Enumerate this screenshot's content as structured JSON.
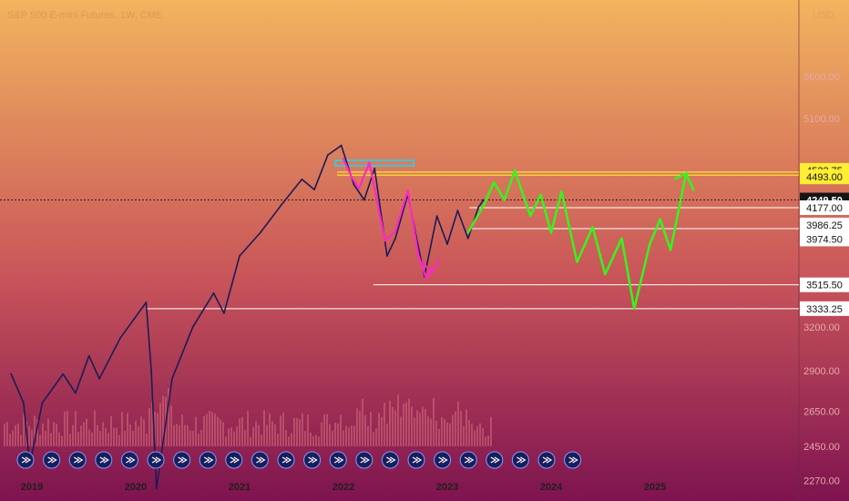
{
  "header": {
    "title": "S&P 500 E-mini Futures, 1W, CME"
  },
  "colors": {
    "bg_top": "#f2b45e",
    "bg_mid": "#c9555a",
    "bg_bottom": "#7e1350",
    "price_line": "#1d1b55",
    "projection": "#3cf01e",
    "pink_path": "#ff28c8",
    "resistance": "#ffee32",
    "level_line": "#ffffff",
    "current_price_line": "#222222",
    "blue_box": "#47c1d8",
    "volume": "#d56b7a",
    "event_icon": "#1a1d5c"
  },
  "chart_data": {
    "type": "line",
    "x_labels": [
      "2019",
      "2020",
      "2021",
      "2022",
      "2023",
      "2024",
      "2025"
    ],
    "y_ticks": [
      "5600.00",
      "5100.00",
      "3200.00",
      "2900.00",
      "2650.00",
      "2450.00",
      "2270.00"
    ],
    "y_scale": "log",
    "ylim": [
      2150,
      6300
    ],
    "series": [
      {
        "values": [
          {
            "x": 2018.8,
            "y": 2880
          },
          {
            "x": 2018.92,
            "y": 2700
          },
          {
            "x": 2018.98,
            "y": 2350
          },
          {
            "x": 2019.1,
            "y": 2700
          },
          {
            "x": 2019.3,
            "y": 2880
          },
          {
            "x": 2019.42,
            "y": 2760
          },
          {
            "x": 2019.55,
            "y": 3000
          },
          {
            "x": 2019.65,
            "y": 2850
          },
          {
            "x": 2019.85,
            "y": 3120
          },
          {
            "x": 2020.1,
            "y": 3380
          },
          {
            "x": 2020.15,
            "y": 2900
          },
          {
            "x": 2020.2,
            "y": 2230
          },
          {
            "x": 2020.35,
            "y": 2850
          },
          {
            "x": 2020.55,
            "y": 3200
          },
          {
            "x": 2020.75,
            "y": 3450
          },
          {
            "x": 2020.85,
            "y": 3300
          },
          {
            "x": 2021.0,
            "y": 3750
          },
          {
            "x": 2021.2,
            "y": 3950
          },
          {
            "x": 2021.4,
            "y": 4200
          },
          {
            "x": 2021.6,
            "y": 4450
          },
          {
            "x": 2021.72,
            "y": 4350
          },
          {
            "x": 2021.85,
            "y": 4700
          },
          {
            "x": 2021.98,
            "y": 4800
          },
          {
            "x": 2022.1,
            "y": 4400
          },
          {
            "x": 2022.2,
            "y": 4250
          },
          {
            "x": 2022.3,
            "y": 4560
          },
          {
            "x": 2022.42,
            "y": 3750
          },
          {
            "x": 2022.5,
            "y": 3900
          },
          {
            "x": 2022.62,
            "y": 4300
          },
          {
            "x": 2022.78,
            "y": 3580
          },
          {
            "x": 2022.9,
            "y": 4100
          },
          {
            "x": 2023.0,
            "y": 3850
          },
          {
            "x": 2023.1,
            "y": 4150
          },
          {
            "x": 2023.2,
            "y": 3900
          },
          {
            "x": 2023.3,
            "y": 4180
          },
          {
            "x": 2023.35,
            "y": 4250
          }
        ]
      },
      {
        "values": [
          {
            "x": 2023.2,
            "y": 3950
          },
          {
            "x": 2023.35,
            "y": 4200
          },
          {
            "x": 2023.45,
            "y": 4420
          },
          {
            "x": 2023.55,
            "y": 4250
          },
          {
            "x": 2023.65,
            "y": 4540
          },
          {
            "x": 2023.8,
            "y": 4100
          },
          {
            "x": 2023.9,
            "y": 4300
          },
          {
            "x": 2024.0,
            "y": 3950
          },
          {
            "x": 2024.1,
            "y": 4330
          },
          {
            "x": 2024.25,
            "y": 3700
          },
          {
            "x": 2024.4,
            "y": 4000
          },
          {
            "x": 2024.52,
            "y": 3600
          },
          {
            "x": 2024.68,
            "y": 3900
          },
          {
            "x": 2024.8,
            "y": 3333
          },
          {
            "x": 2024.95,
            "y": 3850
          },
          {
            "x": 2025.05,
            "y": 4070
          },
          {
            "x": 2025.15,
            "y": 3800
          },
          {
            "x": 2025.3,
            "y": 4510
          }
        ]
      },
      {
        "values": [
          {
            "x": 2022.0,
            "y": 4660
          },
          {
            "x": 2022.08,
            "y": 4470
          },
          {
            "x": 2022.15,
            "y": 4360
          },
          {
            "x": 2022.25,
            "y": 4620
          },
          {
            "x": 2022.4,
            "y": 3880
          },
          {
            "x": 2022.5,
            "y": 3960
          },
          {
            "x": 2022.62,
            "y": 4340
          },
          {
            "x": 2022.72,
            "y": 3760
          },
          {
            "x": 2022.8,
            "y": 3560
          },
          {
            "x": 2022.85,
            "y": 3640
          }
        ]
      }
    ],
    "levels": [
      {
        "label": "4522.75",
        "value": 4522.75,
        "style": "yellow"
      },
      {
        "label": "4493.00",
        "value": 4493.0,
        "style": "yellow"
      },
      {
        "label": "4249.50",
        "value": 4249.5,
        "style": "current"
      },
      {
        "label": "4177.00",
        "value": 4177.0,
        "style": "white"
      },
      {
        "label": "3986.25",
        "value": 3986.25,
        "style": "white"
      },
      {
        "label": "3974.50",
        "value": 3974.5,
        "style": "white"
      },
      {
        "label": "3515.50",
        "value": 3515.5,
        "style": "white"
      },
      {
        "label": "3333.25",
        "value": 3333.25,
        "style": "white"
      }
    ],
    "event_icon_count": 22
  }
}
